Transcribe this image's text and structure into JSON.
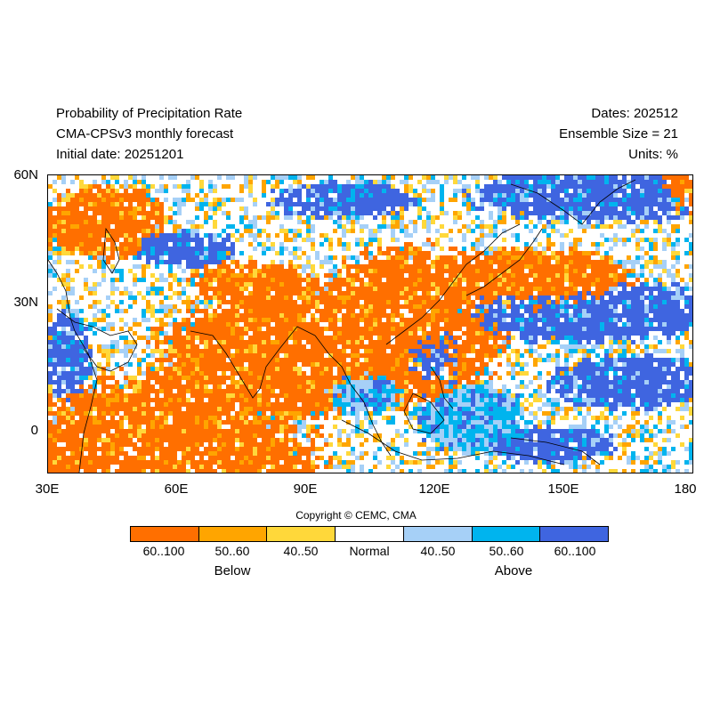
{
  "header": {
    "title": "Probability of Precipitation Rate",
    "subtitle": "CMA-CPSv3 monthly forecast",
    "initial_date": "Initial date: 20251201",
    "dates": "Dates: 202512",
    "ensemble": "Ensemble Size = 21",
    "units": "Units: %"
  },
  "axes": {
    "x_ticks": [
      "30E",
      "60E",
      "90E",
      "120E",
      "150E",
      "180"
    ],
    "y_ticks": [
      "60N",
      "30N",
      "0"
    ],
    "lon_range": [
      30,
      180
    ],
    "lat_range": [
      -10,
      60
    ]
  },
  "legend": {
    "copyright": "Copyright © CEMC, CMA",
    "categories": [
      {
        "label": "60..100",
        "color": "#ff6f00"
      },
      {
        "label": "50..60",
        "color": "#ffa500"
      },
      {
        "label": "40..50",
        "color": "#ffd83a"
      },
      {
        "label": "Normal",
        "color": "#ffffff"
      },
      {
        "label": "40..50",
        "color": "#a6d0f7"
      },
      {
        "label": "50..60",
        "color": "#00b4ee"
      },
      {
        "label": "60..100",
        "color": "#3f65e0"
      }
    ],
    "below_label": "Below",
    "above_label": "Above"
  }
}
